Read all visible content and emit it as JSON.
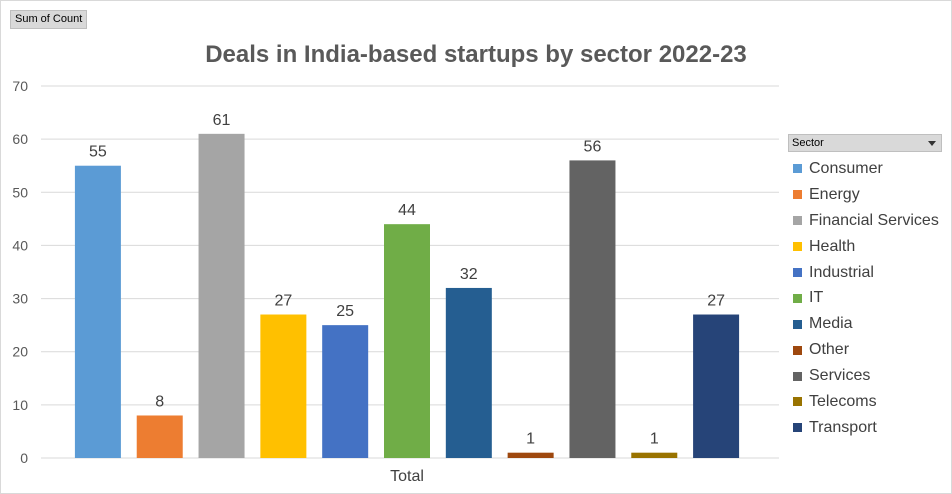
{
  "pivot_field": "Sum of Count",
  "legend_title": "Sector",
  "chart_data": {
    "type": "bar",
    "title": "Deals in India-based startups by sector 2022-23",
    "xlabel": "",
    "ylabel": "",
    "categories": [
      "Total"
    ],
    "ylim": [
      0,
      70
    ],
    "yticks": [
      0,
      10,
      20,
      30,
      40,
      50,
      60,
      70
    ],
    "grid": true,
    "legend_position": "right",
    "series": [
      {
        "name": "Consumer",
        "values": [
          55
        ],
        "color": "#5B9BD5"
      },
      {
        "name": "Energy",
        "values": [
          8
        ],
        "color": "#ED7D31"
      },
      {
        "name": "Financial Services",
        "values": [
          61
        ],
        "color": "#A5A5A5"
      },
      {
        "name": "Health",
        "values": [
          27
        ],
        "color": "#FFC000"
      },
      {
        "name": "Industrial",
        "values": [
          25
        ],
        "color": "#4472C4"
      },
      {
        "name": "IT",
        "values": [
          44
        ],
        "color": "#70AD47"
      },
      {
        "name": "Media",
        "values": [
          32
        ],
        "color": "#255E91"
      },
      {
        "name": "Other",
        "values": [
          1
        ],
        "color": "#9E480E"
      },
      {
        "name": "Services",
        "values": [
          56
        ],
        "color": "#636363"
      },
      {
        "name": "Telecoms",
        "values": [
          1
        ],
        "color": "#997300"
      },
      {
        "name": "Transport",
        "values": [
          27
        ],
        "color": "#264478"
      }
    ]
  }
}
